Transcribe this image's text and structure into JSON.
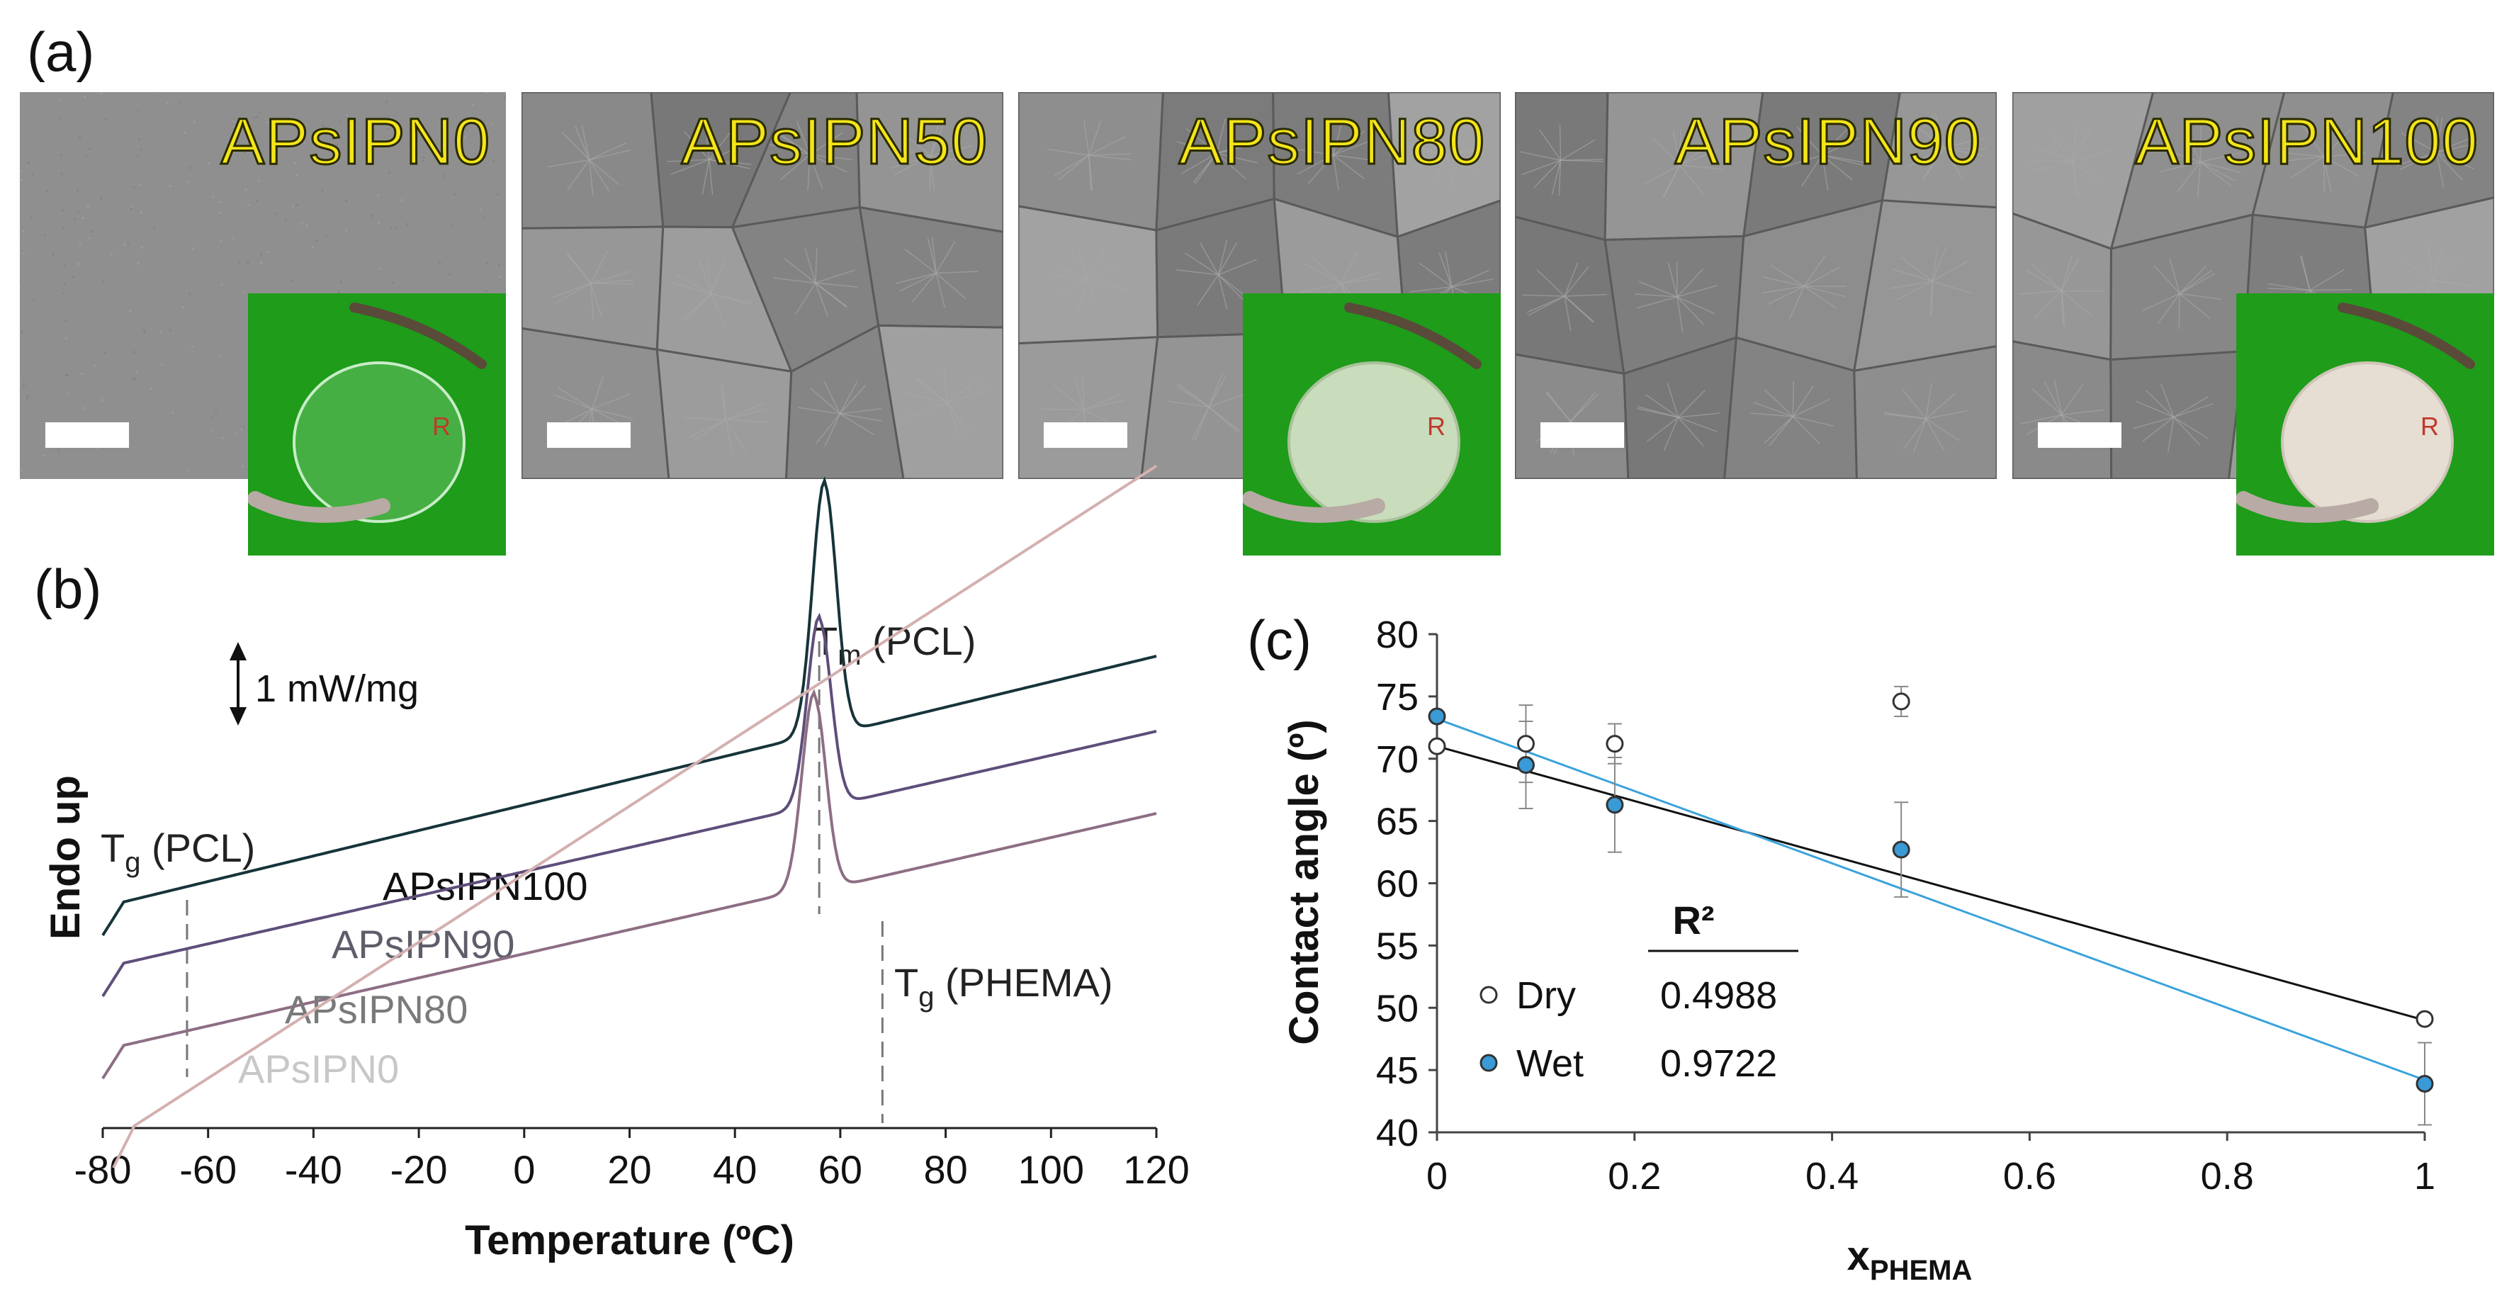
{
  "panel_labels": {
    "a": "(a)",
    "b": "(b)",
    "c": "(c)"
  },
  "micrographs": [
    {
      "label": "APsIPN0",
      "has_inset": true,
      "inset": "transparent"
    },
    {
      "label": "APsIPN50",
      "has_inset": false
    },
    {
      "label": "APsIPN80",
      "has_inset": true,
      "inset": "translucent"
    },
    {
      "label": "APsIPN90",
      "has_inset": false
    },
    {
      "label": "APsIPN100",
      "has_inset": true,
      "inset": "opaque"
    }
  ],
  "chart_data": [
    {
      "type": "line",
      "panel": "b",
      "xlabel": "Temperature (ºC)",
      "ylabel": "Endo up",
      "xlim": [
        -80,
        120
      ],
      "xticks": [
        "-80",
        "-60",
        "-40",
        "-20",
        "0",
        "20",
        "40",
        "60",
        "80",
        "100",
        "120"
      ],
      "scale_label": "1 mW/mg",
      "series": [
        {
          "name": "APsIPN100",
          "color": "#16343a",
          "baseline": 0.86,
          "start": -80,
          "peak": 57,
          "peak_height": 3.55,
          "slope": 0.0018
        },
        {
          "name": "APsIPN90",
          "color": "#5e4e7a",
          "baseline": 0.0,
          "start": -80,
          "peak": 56,
          "peak_height": 2.65,
          "slope": 0.0017
        },
        {
          "name": "APsIPN80",
          "color": "#8e6e84",
          "baseline": -1.16,
          "start": -80,
          "peak": 55,
          "peak_height": 2.75,
          "slope": 0.0017
        },
        {
          "name": "APsIPN0",
          "color": "#d4b0b0",
          "baseline": -2.42,
          "start": -78,
          "peak": null,
          "peak_height": 0,
          "slope": 0.0048
        }
      ],
      "annotations": {
        "tm": {
          "main": "T",
          "sub": "m",
          "rest": " (PCL)",
          "x": 56
        },
        "tg_pcl": {
          "main": "T",
          "sub": "g",
          "rest": " (PCL)",
          "x": -64
        },
        "tg_phema": {
          "main": "T",
          "sub": "g",
          "rest": " (PHEMA)",
          "x": 68
        }
      }
    },
    {
      "type": "scatter",
      "panel": "c",
      "xlabel_main": "x",
      "xlabel_sub": "PHEMA",
      "ylabel": "Contact angle (º)",
      "xlim": [
        0,
        1
      ],
      "ylim": [
        40,
        80
      ],
      "xticks": [
        "0",
        "0.2",
        "0.4",
        "0.6",
        "0.8",
        "1"
      ],
      "yticks": [
        "40",
        "45",
        "50",
        "55",
        "60",
        "65",
        "70",
        "75",
        "80"
      ],
      "legend_header": "R²",
      "series": [
        {
          "name": "Dry",
          "marker": "open",
          "r2": "0.4988",
          "line_color": "#111111",
          "points": [
            {
              "x": 0,
              "y": 71.0,
              "err": 0
            },
            {
              "x": 0.09,
              "y": 71.2,
              "err": 3.1
            },
            {
              "x": 0.18,
              "y": 71.2,
              "err": 1.6
            },
            {
              "x": 0.47,
              "y": 74.6,
              "err": 1.2
            },
            {
              "x": 1.0,
              "y": 49.1,
              "err": 0
            }
          ],
          "fit": {
            "y0": 71.0,
            "y1": 49.0
          }
        },
        {
          "name": "Wet",
          "marker": "filled",
          "r2": "0.9722",
          "line_color": "#3aa3dc",
          "points": [
            {
              "x": 0,
              "y": 73.4,
              "err": 0
            },
            {
              "x": 0.09,
              "y": 69.5,
              "err": 3.5
            },
            {
              "x": 0.18,
              "y": 66.3,
              "err": 3.8
            },
            {
              "x": 0.47,
              "y": 62.7,
              "err": 3.8
            },
            {
              "x": 1.0,
              "y": 43.9,
              "err": 3.3
            }
          ],
          "fit": {
            "y0": 73.2,
            "y1": 44.2
          }
        }
      ]
    }
  ]
}
